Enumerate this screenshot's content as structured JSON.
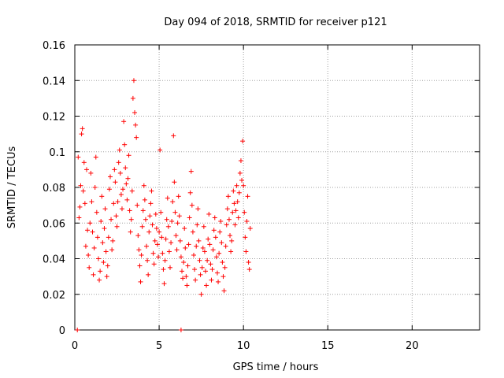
{
  "chart_data": {
    "type": "scatter",
    "title": "Day 094 of 2018, SRMTID for receiver p121",
    "xlabel": "GPS time / hours",
    "ylabel": "SRMTID / TECUs",
    "xlim": [
      0,
      24
    ],
    "ylim": [
      0,
      0.16
    ],
    "xticks": [
      0,
      5,
      10,
      15,
      20
    ],
    "xtick_labels": [
      "0",
      "5",
      "10",
      "15",
      "20"
    ],
    "yticks": [
      0,
      0.02,
      0.04,
      0.06,
      0.08,
      0.1,
      0.12,
      0.14,
      0.16
    ],
    "ytick_labels": [
      "0",
      "0.02",
      "0.04",
      "0.06",
      "0.08",
      "0.1",
      "0.12",
      "0.14",
      "0.16"
    ],
    "grid": true,
    "marker": "+",
    "color": "#ff0000",
    "series": [
      {
        "name": "SRMTID",
        "points": [
          [
            0.2,
            0.097
          ],
          [
            0.25,
            0.063
          ],
          [
            0.3,
            0.069
          ],
          [
            0.35,
            0.081
          ],
          [
            0.4,
            0.11
          ],
          [
            0.45,
            0.113
          ],
          [
            0.5,
            0.078
          ],
          [
            0.55,
            0.094
          ],
          [
            0.6,
            0.071
          ],
          [
            0.65,
            0.047
          ],
          [
            0.7,
            0.09
          ],
          [
            0.75,
            0.056
          ],
          [
            0.8,
            0.042
          ],
          [
            0.85,
            0.035
          ],
          [
            0.9,
            0.06
          ],
          [
            0.95,
            0.088
          ],
          [
            1.0,
            0.072
          ],
          [
            1.05,
            0.055
          ],
          [
            1.1,
            0.031
          ],
          [
            1.15,
            0.046
          ],
          [
            1.2,
            0.08
          ],
          [
            1.25,
            0.097
          ],
          [
            1.3,
            0.066
          ],
          [
            1.35,
            0.052
          ],
          [
            1.4,
            0.04
          ],
          [
            1.45,
            0.028
          ],
          [
            1.5,
            0.033
          ],
          [
            1.55,
            0.061
          ],
          [
            1.6,
            0.075
          ],
          [
            1.65,
            0.049
          ],
          [
            1.7,
            0.038
          ],
          [
            1.75,
            0.057
          ],
          [
            1.8,
            0.068
          ],
          [
            1.85,
            0.044
          ],
          [
            1.9,
            0.03
          ],
          [
            1.95,
            0.036
          ],
          [
            2.0,
            0.052
          ],
          [
            2.05,
            0.079
          ],
          [
            2.1,
            0.086
          ],
          [
            2.15,
            0.062
          ],
          [
            2.2,
            0.045
          ],
          [
            2.25,
            0.05
          ],
          [
            2.3,
            0.071
          ],
          [
            2.35,
            0.09
          ],
          [
            2.4,
            0.083
          ],
          [
            2.45,
            0.064
          ],
          [
            2.5,
            0.058
          ],
          [
            2.55,
            0.072
          ],
          [
            2.6,
            0.094
          ],
          [
            2.65,
            0.101
          ],
          [
            2.7,
            0.088
          ],
          [
            2.75,
            0.076
          ],
          [
            2.8,
            0.068
          ],
          [
            2.85,
            0.079
          ],
          [
            2.9,
            0.117
          ],
          [
            2.95,
            0.104
          ],
          [
            3.0,
            0.091
          ],
          [
            3.05,
            0.082
          ],
          [
            3.1,
            0.073
          ],
          [
            3.15,
            0.085
          ],
          [
            3.2,
            0.098
          ],
          [
            3.25,
            0.067
          ],
          [
            3.3,
            0.055
          ],
          [
            3.35,
            0.062
          ],
          [
            3.4,
            0.078
          ],
          [
            3.45,
            0.13
          ],
          [
            3.5,
            0.14
          ],
          [
            3.55,
            0.122
          ],
          [
            3.6,
            0.115
          ],
          [
            3.65,
            0.108
          ],
          [
            3.7,
            0.07
          ],
          [
            3.75,
            0.053
          ],
          [
            3.8,
            0.045
          ],
          [
            3.85,
            0.036
          ],
          [
            3.9,
            0.027
          ],
          [
            3.95,
            0.042
          ],
          [
            4.0,
            0.058
          ],
          [
            4.05,
            0.067
          ],
          [
            4.1,
            0.081
          ],
          [
            4.15,
            0.073
          ],
          [
            4.2,
            0.062
          ],
          [
            4.25,
            0.047
          ],
          [
            4.3,
            0.039
          ],
          [
            4.35,
            0.031
          ],
          [
            4.4,
            0.055
          ],
          [
            4.45,
            0.064
          ],
          [
            4.5,
            0.071
          ],
          [
            4.55,
            0.078
          ],
          [
            4.6,
            0.059
          ],
          [
            4.65,
            0.043
          ],
          [
            4.7,
            0.037
          ],
          [
            4.75,
            0.05
          ],
          [
            4.8,
            0.065
          ],
          [
            4.85,
            0.057
          ],
          [
            4.9,
            0.048
          ],
          [
            4.95,
            0.041
          ],
          [
            5.0,
            0.055
          ],
          [
            5.05,
            0.101
          ],
          [
            5.1,
            0.066
          ],
          [
            5.15,
            0.052
          ],
          [
            5.2,
            0.043
          ],
          [
            5.25,
            0.034
          ],
          [
            5.3,
            0.026
          ],
          [
            5.35,
            0.039
          ],
          [
            5.4,
            0.051
          ],
          [
            5.45,
            0.062
          ],
          [
            5.5,
            0.074
          ],
          [
            5.55,
            0.058
          ],
          [
            5.6,
            0.044
          ],
          [
            5.65,
            0.035
          ],
          [
            5.7,
            0.049
          ],
          [
            5.75,
            0.061
          ],
          [
            5.8,
            0.072
          ],
          [
            5.85,
            0.109
          ],
          [
            5.9,
            0.083
          ],
          [
            5.95,
            0.066
          ],
          [
            6.0,
            0.053
          ],
          [
            6.05,
            0.045
          ],
          [
            6.1,
            0.06
          ],
          [
            6.15,
            0.075
          ],
          [
            6.2,
            0.064
          ],
          [
            6.25,
            0.05
          ],
          [
            6.3,
            0.041
          ],
          [
            6.35,
            0.033
          ],
          [
            6.4,
            0.029
          ],
          [
            6.45,
            0.038
          ],
          [
            6.5,
            0.057
          ],
          [
            6.55,
            0.046
          ],
          [
            6.6,
            0.03
          ],
          [
            6.65,
            0.025
          ],
          [
            6.7,
            0.036
          ],
          [
            6.75,
            0.048
          ],
          [
            6.8,
            0.063
          ],
          [
            6.85,
            0.077
          ],
          [
            6.9,
            0.089
          ],
          [
            6.95,
            0.07
          ],
          [
            7.0,
            0.055
          ],
          [
            7.05,
            0.042
          ],
          [
            7.1,
            0.034
          ],
          [
            7.15,
            0.028
          ],
          [
            7.2,
            0.047
          ],
          [
            7.25,
            0.059
          ],
          [
            7.3,
            0.068
          ],
          [
            7.35,
            0.05
          ],
          [
            7.4,
            0.039
          ],
          [
            7.45,
            0.031
          ],
          [
            7.5,
            0.02
          ],
          [
            7.55,
            0.035
          ],
          [
            7.6,
            0.046
          ],
          [
            7.65,
            0.058
          ],
          [
            7.7,
            0.044
          ],
          [
            7.75,
            0.033
          ],
          [
            7.8,
            0.025
          ],
          [
            7.85,
            0.039
          ],
          [
            7.9,
            0.051
          ],
          [
            7.95,
            0.065
          ],
          [
            8.0,
            0.048
          ],
          [
            8.05,
            0.037
          ],
          [
            8.1,
            0.028
          ],
          [
            8.15,
            0.034
          ],
          [
            8.2,
            0.045
          ],
          [
            8.25,
            0.056
          ],
          [
            8.3,
            0.063
          ],
          [
            8.35,
            0.052
          ],
          [
            8.4,
            0.041
          ],
          [
            8.45,
            0.032
          ],
          [
            8.5,
            0.027
          ],
          [
            8.55,
            0.043
          ],
          [
            8.6,
            0.055
          ],
          [
            8.65,
            0.061
          ],
          [
            8.7,
            0.049
          ],
          [
            8.75,
            0.038
          ],
          [
            8.8,
            0.03
          ],
          [
            8.85,
            0.022
          ],
          [
            8.9,
            0.035
          ],
          [
            8.95,
            0.047
          ],
          [
            9.0,
            0.059
          ],
          [
            9.05,
            0.068
          ],
          [
            9.1,
            0.075
          ],
          [
            9.15,
            0.062
          ],
          [
            9.2,
            0.053
          ],
          [
            9.25,
            0.044
          ],
          [
            9.3,
            0.05
          ],
          [
            9.35,
            0.066
          ],
          [
            9.4,
            0.078
          ],
          [
            9.45,
            0.071
          ],
          [
            9.5,
            0.059
          ],
          [
            9.55,
            0.067
          ],
          [
            9.6,
            0.081
          ],
          [
            9.65,
            0.072
          ],
          [
            9.7,
            0.063
          ],
          [
            9.75,
            0.077
          ],
          [
            9.8,
            0.088
          ],
          [
            9.85,
            0.095
          ],
          [
            9.9,
            0.084
          ],
          [
            9.95,
            0.106
          ],
          [
            10.0,
            0.081
          ],
          [
            10.05,
            0.066
          ],
          [
            10.1,
            0.052
          ],
          [
            10.15,
            0.044
          ],
          [
            10.2,
            0.061
          ],
          [
            10.25,
            0.075
          ],
          [
            10.3,
            0.038
          ],
          [
            10.35,
            0.034
          ],
          [
            10.4,
            0.057
          ],
          [
            0.15,
            0.0
          ],
          [
            6.3,
            0.0
          ]
        ]
      }
    ]
  }
}
